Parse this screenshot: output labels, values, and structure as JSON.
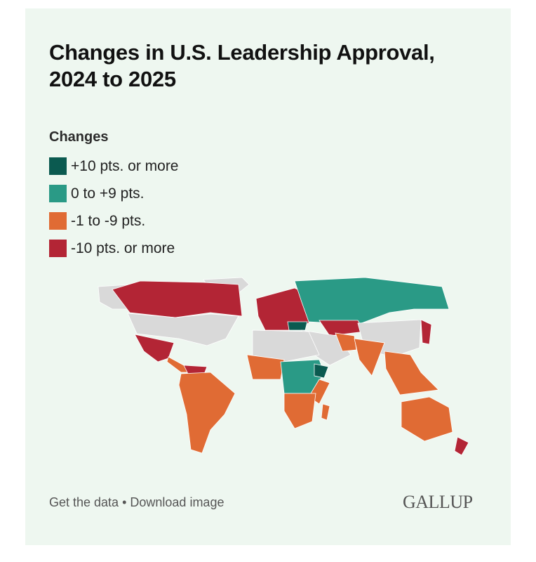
{
  "title": "Changes in U.S. Leadership Approval, 2024 to 2025",
  "legend": {
    "title": "Changes",
    "items": [
      {
        "label": "+10 pts. or more",
        "color": "#0b5a50"
      },
      {
        "label": "0 to +9 pts.",
        "color": "#2a9a86"
      },
      {
        "label": "-1 to -9 pts.",
        "color": "#e06b34"
      },
      {
        "label": "-10 pts. or more",
        "color": "#b32535"
      }
    ]
  },
  "map": {
    "no_data_color": "#d9d9d9",
    "border_color": "#ffffff"
  },
  "footer": {
    "get_data": "Get the data",
    "separator": " • ",
    "download": "Download image"
  },
  "logo": "GALLUP"
}
